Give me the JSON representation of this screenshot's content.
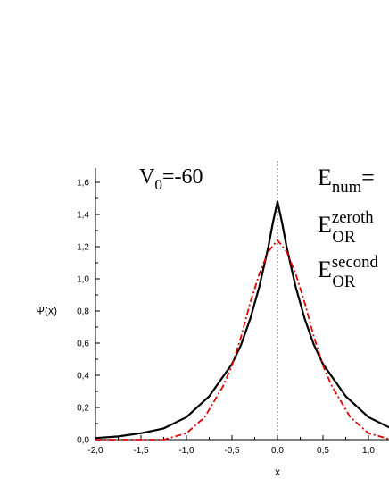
{
  "chart_data": {
    "type": "line",
    "xlabel": "x",
    "ylabel": "Ψ(x)",
    "xlim": [
      -2.0,
      1.25
    ],
    "ylim": [
      0.0,
      1.7
    ],
    "x_ticks": [
      "-2,0",
      "-1,5",
      "-1,0",
      "-0,5",
      "0,0",
      "0,5",
      "1,0"
    ],
    "y_ticks": [
      "0,0",
      "0,2",
      "0,4",
      "0,6",
      "0,8",
      "1,0",
      "1,2",
      "1,4",
      "1,6"
    ],
    "reference_line_x": 0.0,
    "annotations": {
      "potential": {
        "base": "V",
        "sub": "0",
        "rest": "=-60"
      },
      "e_num": {
        "base": "E",
        "sub": "num",
        "rest": "="
      },
      "e_zeroth": {
        "base": "E",
        "sub": "OR",
        "sup": "zeroth"
      },
      "e_second": {
        "base": "E",
        "sub": "OR",
        "sup": "second"
      }
    },
    "series": [
      {
        "color": "#000000",
        "style": "solid",
        "x": [
          -2.0,
          -1.75,
          -1.5,
          -1.25,
          -1.0,
          -0.75,
          -0.5,
          -0.4,
          -0.3,
          -0.2,
          -0.1,
          -0.05,
          0.0,
          0.05,
          0.1,
          0.2,
          0.3,
          0.4,
          0.5,
          0.75,
          1.0,
          1.25
        ],
        "y": [
          0.01,
          0.02,
          0.04,
          0.07,
          0.14,
          0.27,
          0.47,
          0.59,
          0.75,
          0.95,
          1.2,
          1.35,
          1.48,
          1.35,
          1.2,
          0.95,
          0.75,
          0.59,
          0.47,
          0.27,
          0.14,
          0.07
        ]
      },
      {
        "color": "#e00000",
        "style": "dash-dot",
        "x": [
          -2.0,
          -1.5,
          -1.25,
          -1.0,
          -0.8,
          -0.6,
          -0.5,
          -0.4,
          -0.3,
          -0.2,
          -0.1,
          0.0,
          0.1,
          0.2,
          0.3,
          0.4,
          0.5,
          0.6,
          0.8,
          1.0,
          1.25
        ],
        "y": [
          0.0,
          0.0,
          0.0,
          0.04,
          0.14,
          0.33,
          0.46,
          0.64,
          0.85,
          1.03,
          1.17,
          1.24,
          1.17,
          1.03,
          0.85,
          0.64,
          0.46,
          0.33,
          0.14,
          0.04,
          0.0
        ]
      }
    ]
  }
}
